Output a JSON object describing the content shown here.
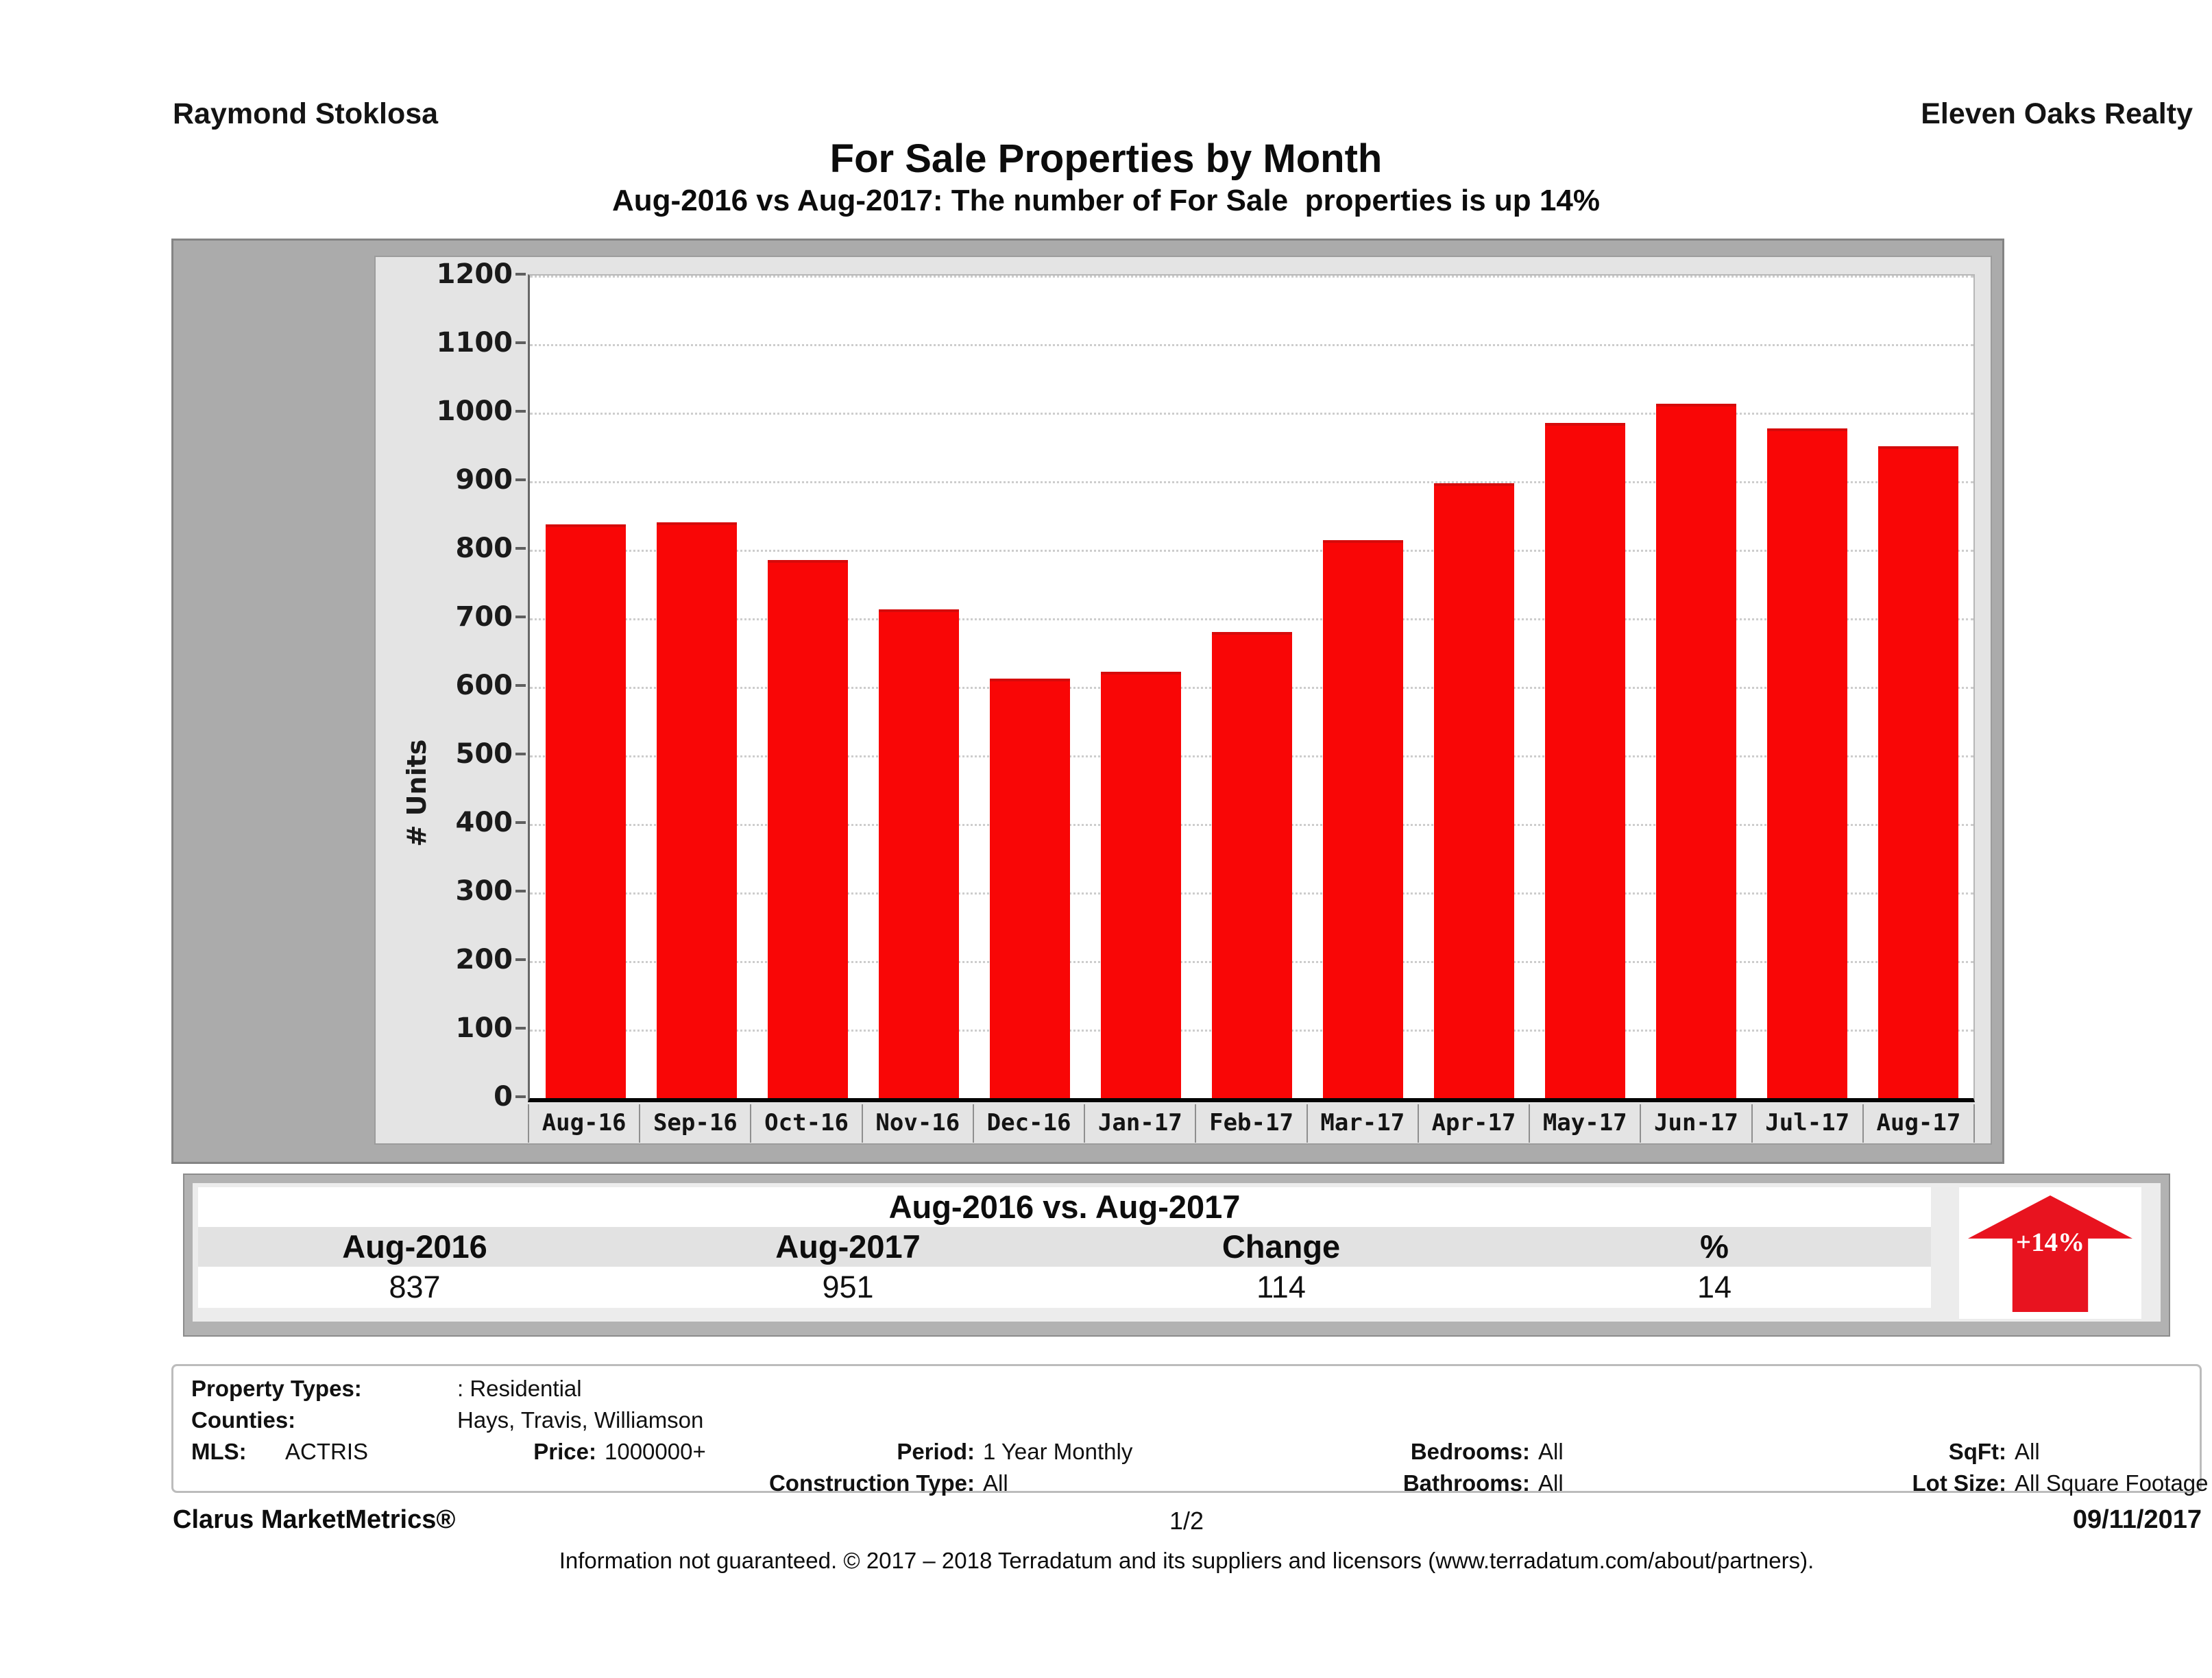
{
  "header": {
    "agent": "Raymond Stoklosa",
    "company": "Eleven Oaks Realty",
    "title": "For Sale Properties by Month",
    "subtitle": "Aug-2016 vs Aug-2017: The number of For Sale  properties is up 14%"
  },
  "chart_data": {
    "type": "bar",
    "title": "For Sale Properties by Month",
    "categories": [
      "Aug-16",
      "Sep-16",
      "Oct-16",
      "Nov-16",
      "Dec-16",
      "Jan-17",
      "Feb-17",
      "Mar-17",
      "Apr-17",
      "May-17",
      "Jun-17",
      "Jul-17",
      "Aug-17"
    ],
    "values": [
      837,
      840,
      785,
      713,
      612,
      622,
      680,
      814,
      897,
      985,
      1013,
      977,
      951
    ],
    "xlabel": "",
    "ylabel": "# Units",
    "ylim": [
      0,
      1200
    ],
    "ytick_step": 100,
    "grid": "horizontal-dotted",
    "legend": "none",
    "bar_color": "#f90606"
  },
  "summary": {
    "title": "Aug-2016 vs. Aug-2017",
    "columns": [
      "Aug-2016",
      "Aug-2017",
      "Change",
      "%"
    ],
    "values": [
      837,
      951,
      114,
      14
    ],
    "badge": "+14%",
    "badge_color": "#e8131f"
  },
  "filters": {
    "property_types": {
      "label": "Property Types:",
      "value": ": Residential"
    },
    "counties": {
      "label": "Counties:",
      "value": "Hays, Travis, Williamson"
    },
    "mls": {
      "label": "MLS:",
      "value": "ACTRIS"
    },
    "price": {
      "label": "Price:",
      "value": "1000000+"
    },
    "period": {
      "label": "Period:",
      "value": "1 Year Monthly"
    },
    "bedrooms": {
      "label": "Bedrooms:",
      "value": "All"
    },
    "sqft": {
      "label": "SqFt:",
      "value": "All"
    },
    "construction": {
      "label": "Construction Type:",
      "value": "All"
    },
    "bathrooms": {
      "label": "Bathrooms:",
      "value": "All"
    },
    "lot_size": {
      "label": "Lot Size:",
      "value": "All Square Footage"
    }
  },
  "footer": {
    "brand": "Clarus MarketMetrics®",
    "page": "1/2",
    "date": "09/11/2017",
    "disclaimer": "Information not guaranteed. © 2017 – 2018 Terradatum and its suppliers and licensors (www.terradatum.com/about/partners)."
  }
}
